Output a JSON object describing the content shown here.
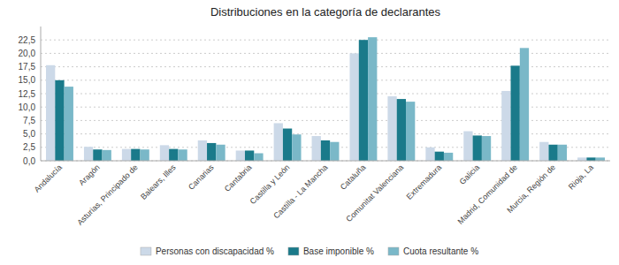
{
  "chart_data": {
    "type": "bar",
    "title": "Distribuciones en la categoría de declarantes",
    "categories": [
      "Andalucía",
      "Aragón",
      "Asturias, Principado de",
      "Balears, Illes",
      "Canarias",
      "Cantabria",
      "Castilla y León",
      "Castilla - La Mancha",
      "Cataluña",
      "Comunitat Valenciana",
      "Extremadura",
      "Galicia",
      "Madrid, Comunidad de",
      "Murcia, Región de",
      "Rioja, La"
    ],
    "series": [
      {
        "name": "Personas con discapacidad %",
        "color": "#ccd9e8",
        "values": [
          17.8,
          2.6,
          2.2,
          2.9,
          3.8,
          1.9,
          7.0,
          4.6,
          20.0,
          12.0,
          2.5,
          5.5,
          13.0,
          3.5,
          0.6
        ]
      },
      {
        "name": "Base imponible %",
        "color": "#1a7a8a",
        "values": [
          15.0,
          2.1,
          2.2,
          2.2,
          3.3,
          1.9,
          6.0,
          3.8,
          22.5,
          11.5,
          1.7,
          4.7,
          17.7,
          3.0,
          0.6
        ]
      },
      {
        "name": "Cuota resultante %",
        "color": "#7ab8c8",
        "values": [
          13.8,
          2.0,
          2.1,
          2.1,
          3.0,
          1.4,
          4.9,
          3.5,
          23.0,
          11.0,
          1.5,
          4.6,
          21.0,
          3.0,
          0.6
        ]
      }
    ],
    "ylim": [
      0,
      25
    ],
    "yticks": [
      {
        "value": 0.0,
        "label": "0,0"
      },
      {
        "value": 2.5,
        "label": "2,5"
      },
      {
        "value": 5.0,
        "label": "5,0"
      },
      {
        "value": 7.5,
        "label": "7,5"
      },
      {
        "value": 10.0,
        "label": "10,0"
      },
      {
        "value": 12.5,
        "label": "12,5"
      },
      {
        "value": 15.0,
        "label": "15,0"
      },
      {
        "value": 17.5,
        "label": "17,5"
      },
      {
        "value": 20.0,
        "label": "20,0"
      },
      {
        "value": 22.5,
        "label": "22,5"
      }
    ],
    "grid": true,
    "legend": "bottom"
  }
}
